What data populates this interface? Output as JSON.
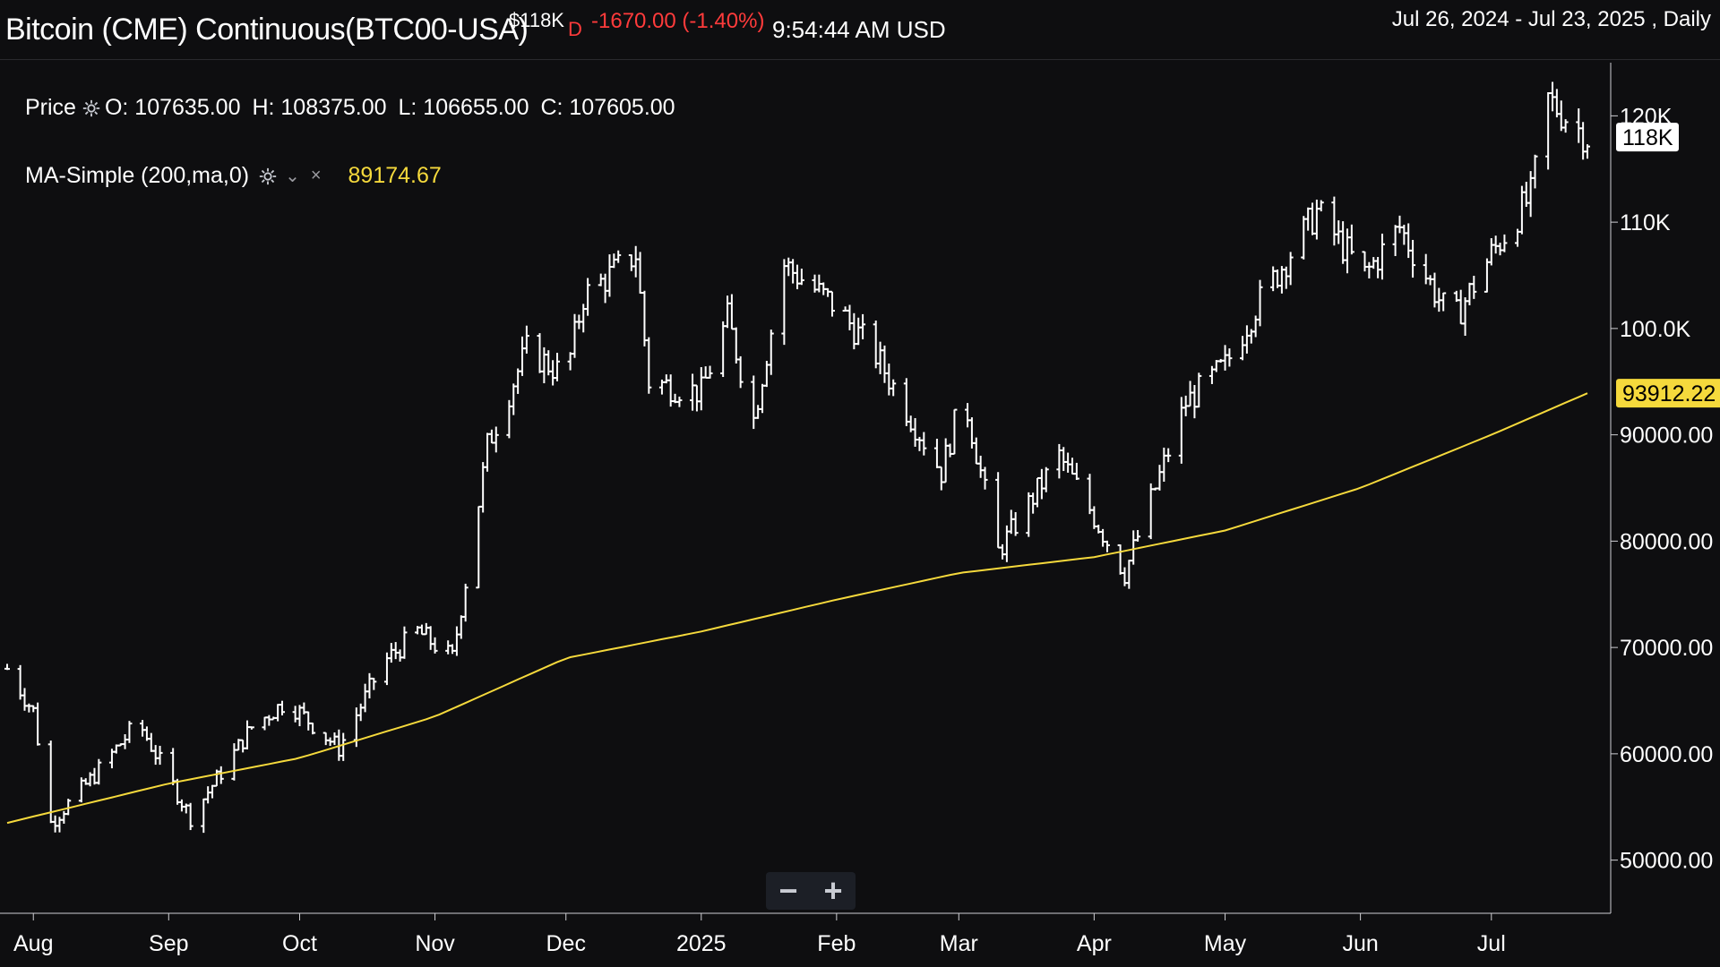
{
  "header": {
    "title": "Bitcoin (CME) Continuous(BTC00-USA)",
    "last_price": "$118K",
    "period_letter": "D",
    "change": "-1670.00 (-1.40%)",
    "time": "9:54:44 AM USD",
    "date_range": "Jul 26, 2024 - Jul 23, 2025 , Daily"
  },
  "legend": {
    "price_label": "Price",
    "ohlc": {
      "open": "O: 107635.00",
      "high": "H: 108375.00",
      "low": "L: 106655.00",
      "close": "C: 107605.00"
    },
    "ma_label": "MA-Simple (200,ma,0)",
    "ma_value": "89174.67"
  },
  "zoom": {
    "minus": "−",
    "plus": "+"
  },
  "colors": {
    "background": "#0e0e10",
    "bars": "#ffffff",
    "ma_line": "#f5d93c",
    "down": "#ff3b3b"
  },
  "chart_data": {
    "type": "ohlc-bar",
    "y_axis": {
      "range": [
        45000,
        125000
      ],
      "ticks": [
        {
          "value": 120000,
          "label": "120K"
        },
        {
          "value": 110000,
          "label": "110K"
        },
        {
          "value": 100000,
          "label": "100.0K"
        },
        {
          "value": 90000,
          "label": "90000.00"
        },
        {
          "value": 80000,
          "label": "80000.00"
        },
        {
          "value": 70000,
          "label": "70000.00"
        },
        {
          "value": 60000,
          "label": "60000.00"
        },
        {
          "value": 50000,
          "label": "50000.00"
        }
      ]
    },
    "x_axis": {
      "range": [
        "2024-07-26",
        "2025-07-23"
      ],
      "ticks": [
        {
          "date": "2024-08-01",
          "label": "Aug"
        },
        {
          "date": "2024-09-01",
          "label": "Sep"
        },
        {
          "date": "2024-10-01",
          "label": "Oct"
        },
        {
          "date": "2024-11-01",
          "label": "Nov"
        },
        {
          "date": "2024-12-01",
          "label": "Dec"
        },
        {
          "date": "2025-01-01",
          "label": "2025"
        },
        {
          "date": "2025-02-01",
          "label": "Feb"
        },
        {
          "date": "2025-03-01",
          "label": "Mar"
        },
        {
          "date": "2025-04-01",
          "label": "Apr"
        },
        {
          "date": "2025-05-01",
          "label": "May"
        },
        {
          "date": "2025-06-01",
          "label": "Jun"
        },
        {
          "date": "2025-07-01",
          "label": "Jul"
        }
      ]
    },
    "price_marker": {
      "value": 118000,
      "label": "118K"
    },
    "ma_marker": {
      "value": 93912.22,
      "label": "93912.22"
    },
    "price_series": [
      {
        "date": "2024-07-26",
        "close": 68000
      },
      {
        "date": "2024-08-01",
        "close": 64000
      },
      {
        "date": "2024-08-05",
        "close": 53500
      },
      {
        "date": "2024-08-15",
        "close": 58000
      },
      {
        "date": "2024-08-25",
        "close": 63000
      },
      {
        "date": "2024-09-06",
        "close": 54000
      },
      {
        "date": "2024-09-20",
        "close": 62500
      },
      {
        "date": "2024-09-28",
        "close": 65000
      },
      {
        "date": "2024-10-10",
        "close": 60500
      },
      {
        "date": "2024-10-20",
        "close": 68500
      },
      {
        "date": "2024-10-28",
        "close": 71500
      },
      {
        "date": "2024-11-05",
        "close": 69000
      },
      {
        "date": "2024-11-10",
        "close": 81000
      },
      {
        "date": "2024-11-13",
        "close": 89000
      },
      {
        "date": "2024-11-22",
        "close": 98000
      },
      {
        "date": "2024-12-01",
        "close": 95500
      },
      {
        "date": "2024-12-05",
        "close": 103000
      },
      {
        "date": "2024-12-17",
        "close": 107000
      },
      {
        "date": "2024-12-20",
        "close": 95000
      },
      {
        "date": "2025-01-01",
        "close": 94000
      },
      {
        "date": "2025-01-07",
        "close": 101000
      },
      {
        "date": "2025-01-13",
        "close": 91500
      },
      {
        "date": "2025-01-20",
        "close": 106000
      },
      {
        "date": "2025-02-01",
        "close": 102000
      },
      {
        "date": "2025-02-10",
        "close": 97500
      },
      {
        "date": "2025-02-25",
        "close": 86500
      },
      {
        "date": "2025-03-02",
        "close": 94000
      },
      {
        "date": "2025-03-10",
        "close": 79000
      },
      {
        "date": "2025-03-24",
        "close": 88000
      },
      {
        "date": "2025-03-31",
        "close": 83000
      },
      {
        "date": "2025-04-08",
        "close": 77000
      },
      {
        "date": "2025-04-22",
        "close": 93000
      },
      {
        "date": "2025-05-01",
        "close": 96500
      },
      {
        "date": "2025-05-08",
        "close": 102000
      },
      {
        "date": "2025-05-22",
        "close": 111000
      },
      {
        "date": "2025-06-02",
        "close": 105000
      },
      {
        "date": "2025-06-10",
        "close": 109500
      },
      {
        "date": "2025-06-22",
        "close": 100500
      },
      {
        "date": "2025-07-01",
        "close": 107000
      },
      {
        "date": "2025-07-10",
        "close": 112500
      },
      {
        "date": "2025-07-14",
        "close": 121500
      },
      {
        "date": "2025-07-23",
        "close": 118000
      }
    ],
    "ma_series": [
      {
        "date": "2024-07-26",
        "value": 53500
      },
      {
        "date": "2024-09-01",
        "value": 57200
      },
      {
        "date": "2024-10-01",
        "value": 59600
      },
      {
        "date": "2024-11-01",
        "value": 63500
      },
      {
        "date": "2024-12-01",
        "value": 69000
      },
      {
        "date": "2025-01-01",
        "value": 71500
      },
      {
        "date": "2025-02-01",
        "value": 74500
      },
      {
        "date": "2025-03-01",
        "value": 77000
      },
      {
        "date": "2025-04-01",
        "value": 78500
      },
      {
        "date": "2025-05-01",
        "value": 81000
      },
      {
        "date": "2025-06-01",
        "value": 85000
      },
      {
        "date": "2025-07-01",
        "value": 90000
      },
      {
        "date": "2025-07-23",
        "value": 93912.22
      }
    ]
  }
}
